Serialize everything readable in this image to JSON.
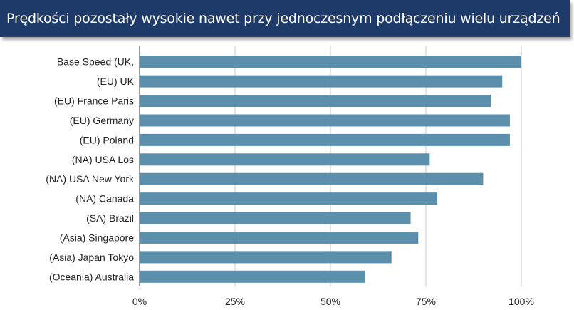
{
  "header": {
    "title": "Prędkości pozostały wysokie nawet przy jednoczesnym podłączeniu wielu urządzeń"
  },
  "colors": {
    "header_bg": "#1e3a68",
    "bar": "#5b8fac",
    "grid": "#c8c8c8"
  },
  "chart_data": {
    "type": "bar",
    "orientation": "horizontal",
    "title": "Prędkości pozostały wysokie nawet przy jednoczesnym podłączeniu wielu urządzeń",
    "xlabel": "",
    "ylabel": "",
    "categories": [
      "Base Speed (UK,",
      "(EU) UK",
      "(EU) France Paris",
      "(EU) Germany",
      "(EU) Poland",
      "(NA) USA Los",
      "(NA) USA New York",
      "(NA) Canada",
      "(SA) Brazil",
      "(Asia) Singapore",
      "(Asia) Japan Tokyo",
      "(Oceania) Australia"
    ],
    "values": [
      100,
      95,
      92,
      97,
      97,
      76,
      90,
      78,
      71,
      73,
      66,
      59
    ],
    "xlim": [
      0,
      100
    ],
    "x_ticks": [
      "0%",
      "25%",
      "50%",
      "75%",
      "100%"
    ],
    "x_tick_values": [
      0,
      25,
      50,
      75,
      100
    ],
    "grid": true,
    "legend": "none"
  }
}
